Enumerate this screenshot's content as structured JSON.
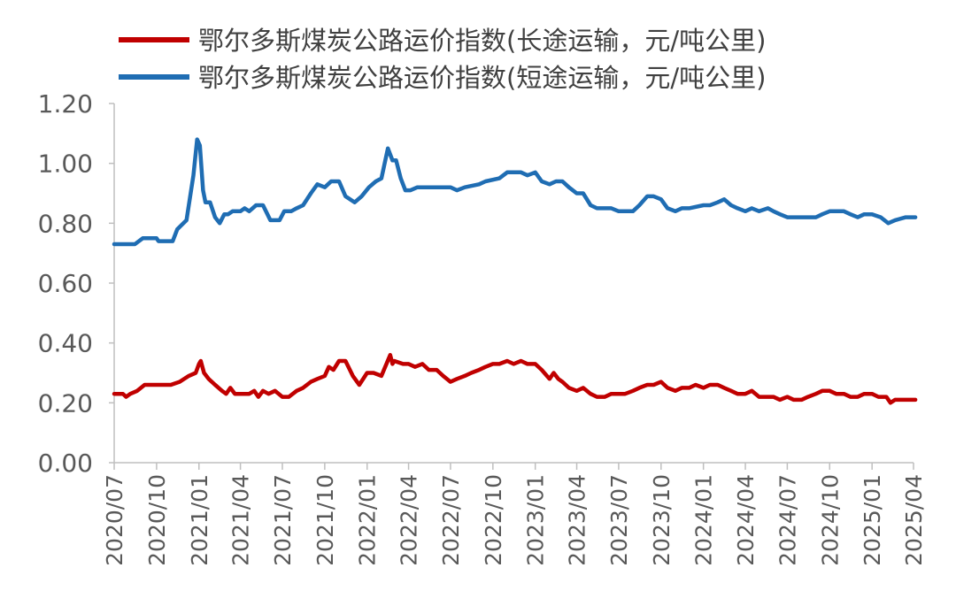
{
  "chart_data": {
    "type": "line",
    "title": "",
    "xlabel": "",
    "ylabel": "",
    "ylim": [
      0,
      1.2
    ],
    "y_ticks": [
      "0.00",
      "0.20",
      "0.40",
      "0.60",
      "0.80",
      "1.00",
      "1.20"
    ],
    "x_range": [
      "2020/07",
      "2025/04"
    ],
    "x_ticks": [
      "2020/07",
      "2020/10",
      "2021/01",
      "2021/04",
      "2021/07",
      "2021/10",
      "2022/01",
      "2022/04",
      "2022/07",
      "2022/10",
      "2023/01",
      "2023/04",
      "2023/07",
      "2023/10",
      "2024/01",
      "2024/04",
      "2024/07",
      "2024/10",
      "2025/01",
      "2025/04"
    ],
    "grid": false,
    "legend_position": "top",
    "series": [
      {
        "name": "鄂尔多斯煤炭公路运价指数(长途运输，元/吨公里)",
        "color": "#c00000",
        "points": [
          [
            "2020/07/01",
            0.23
          ],
          [
            "2020/07/20",
            0.23
          ],
          [
            "2020/07/27",
            0.22
          ],
          [
            "2020/08/05",
            0.23
          ],
          [
            "2020/08/20",
            0.24
          ],
          [
            "2020/09/05",
            0.26
          ],
          [
            "2020/10/01",
            0.26
          ],
          [
            "2020/11/01",
            0.26
          ],
          [
            "2020/11/20",
            0.27
          ],
          [
            "2020/12/10",
            0.29
          ],
          [
            "2020/12/25",
            0.3
          ],
          [
            "2021/01/01",
            0.33
          ],
          [
            "2021/01/05",
            0.34
          ],
          [
            "2021/01/12",
            0.3
          ],
          [
            "2021/01/22",
            0.28
          ],
          [
            "2021/02/05",
            0.26
          ],
          [
            "2021/02/20",
            0.24
          ],
          [
            "2021/03/01",
            0.23
          ],
          [
            "2021/03/10",
            0.25
          ],
          [
            "2021/03/20",
            0.23
          ],
          [
            "2021/04/20",
            0.23
          ],
          [
            "2021/05/01",
            0.24
          ],
          [
            "2021/05/10",
            0.22
          ],
          [
            "2021/05/20",
            0.24
          ],
          [
            "2021/06/01",
            0.23
          ],
          [
            "2021/06/15",
            0.24
          ],
          [
            "2021/07/01",
            0.22
          ],
          [
            "2021/07/15",
            0.22
          ],
          [
            "2021/08/01",
            0.24
          ],
          [
            "2021/08/15",
            0.25
          ],
          [
            "2021/09/01",
            0.27
          ],
          [
            "2021/09/15",
            0.28
          ],
          [
            "2021/10/01",
            0.29
          ],
          [
            "2021/10/10",
            0.32
          ],
          [
            "2021/10/20",
            0.31
          ],
          [
            "2021/11/01",
            0.34
          ],
          [
            "2021/11/15",
            0.34
          ],
          [
            "2021/12/01",
            0.29
          ],
          [
            "2021/12/15",
            0.26
          ],
          [
            "2022/01/01",
            0.3
          ],
          [
            "2022/01/15",
            0.3
          ],
          [
            "2022/02/01",
            0.29
          ],
          [
            "2022/02/20",
            0.36
          ],
          [
            "2022/02/25",
            0.33
          ],
          [
            "2022/03/01",
            0.34
          ],
          [
            "2022/03/20",
            0.33
          ],
          [
            "2022/04/01",
            0.33
          ],
          [
            "2022/04/15",
            0.32
          ],
          [
            "2022/05/01",
            0.33
          ],
          [
            "2022/05/15",
            0.31
          ],
          [
            "2022/06/01",
            0.31
          ],
          [
            "2022/06/15",
            0.29
          ],
          [
            "2022/07/01",
            0.27
          ],
          [
            "2022/07/15",
            0.28
          ],
          [
            "2022/08/01",
            0.29
          ],
          [
            "2022/08/15",
            0.3
          ],
          [
            "2022/09/01",
            0.31
          ],
          [
            "2022/09/15",
            0.32
          ],
          [
            "2022/10/01",
            0.33
          ],
          [
            "2022/10/15",
            0.33
          ],
          [
            "2022/11/01",
            0.34
          ],
          [
            "2022/11/15",
            0.33
          ],
          [
            "2022/12/01",
            0.34
          ],
          [
            "2022/12/15",
            0.33
          ],
          [
            "2023/01/01",
            0.33
          ],
          [
            "2023/01/15",
            0.31
          ],
          [
            "2023/02/01",
            0.28
          ],
          [
            "2023/02/10",
            0.3
          ],
          [
            "2023/02/20",
            0.28
          ],
          [
            "2023/03/01",
            0.27
          ],
          [
            "2023/03/15",
            0.25
          ],
          [
            "2023/04/01",
            0.24
          ],
          [
            "2023/04/15",
            0.25
          ],
          [
            "2023/05/01",
            0.23
          ],
          [
            "2023/05/15",
            0.22
          ],
          [
            "2023/06/01",
            0.22
          ],
          [
            "2023/06/15",
            0.23
          ],
          [
            "2023/07/01",
            0.23
          ],
          [
            "2023/07/15",
            0.23
          ],
          [
            "2023/08/01",
            0.24
          ],
          [
            "2023/08/15",
            0.25
          ],
          [
            "2023/09/01",
            0.26
          ],
          [
            "2023/09/15",
            0.26
          ],
          [
            "2023/10/01",
            0.27
          ],
          [
            "2023/10/15",
            0.25
          ],
          [
            "2023/11/01",
            0.24
          ],
          [
            "2023/11/15",
            0.25
          ],
          [
            "2023/12/01",
            0.25
          ],
          [
            "2023/12/15",
            0.26
          ],
          [
            "2024/01/01",
            0.25
          ],
          [
            "2024/01/15",
            0.26
          ],
          [
            "2024/02/01",
            0.26
          ],
          [
            "2024/02/15",
            0.25
          ],
          [
            "2024/03/01",
            0.24
          ],
          [
            "2024/03/15",
            0.23
          ],
          [
            "2024/04/01",
            0.23
          ],
          [
            "2024/04/15",
            0.24
          ],
          [
            "2024/05/01",
            0.22
          ],
          [
            "2024/05/15",
            0.22
          ],
          [
            "2024/06/01",
            0.22
          ],
          [
            "2024/06/15",
            0.21
          ],
          [
            "2024/07/01",
            0.22
          ],
          [
            "2024/07/15",
            0.21
          ],
          [
            "2024/08/01",
            0.21
          ],
          [
            "2024/08/15",
            0.22
          ],
          [
            "2024/09/01",
            0.23
          ],
          [
            "2024/09/15",
            0.24
          ],
          [
            "2024/10/01",
            0.24
          ],
          [
            "2024/10/15",
            0.23
          ],
          [
            "2024/11/01",
            0.23
          ],
          [
            "2024/11/15",
            0.22
          ],
          [
            "2024/12/01",
            0.22
          ],
          [
            "2024/12/15",
            0.23
          ],
          [
            "2025/01/01",
            0.23
          ],
          [
            "2025/01/15",
            0.22
          ],
          [
            "2025/02/01",
            0.22
          ],
          [
            "2025/02/10",
            0.2
          ],
          [
            "2025/02/20",
            0.21
          ],
          [
            "2025/03/15",
            0.21
          ],
          [
            "2025/04/05",
            0.21
          ]
        ]
      },
      {
        "name": "鄂尔多斯煤炭公路运价指数(短途运输，元/吨公里)",
        "color": "#1f6db3",
        "points": [
          [
            "2020/07/01",
            0.73
          ],
          [
            "2020/08/15",
            0.73
          ],
          [
            "2020/09/01",
            0.75
          ],
          [
            "2020/10/01",
            0.75
          ],
          [
            "2020/10/05",
            0.74
          ],
          [
            "2020/11/05",
            0.74
          ],
          [
            "2020/11/15",
            0.78
          ],
          [
            "2020/12/05",
            0.81
          ],
          [
            "2020/12/20",
            0.96
          ],
          [
            "2020/12/28",
            1.08
          ],
          [
            "2021/01/03",
            1.06
          ],
          [
            "2021/01/10",
            0.91
          ],
          [
            "2021/01/15",
            0.87
          ],
          [
            "2021/01/25",
            0.87
          ],
          [
            "2021/02/05",
            0.82
          ],
          [
            "2021/02/15",
            0.8
          ],
          [
            "2021/02/25",
            0.83
          ],
          [
            "2021/03/05",
            0.83
          ],
          [
            "2021/03/15",
            0.84
          ],
          [
            "2021/04/01",
            0.84
          ],
          [
            "2021/04/10",
            0.85
          ],
          [
            "2021/04/20",
            0.84
          ],
          [
            "2021/05/05",
            0.86
          ],
          [
            "2021/05/20",
            0.86
          ],
          [
            "2021/06/05",
            0.81
          ],
          [
            "2021/06/25",
            0.81
          ],
          [
            "2021/07/05",
            0.84
          ],
          [
            "2021/07/20",
            0.84
          ],
          [
            "2021/08/01",
            0.85
          ],
          [
            "2021/08/15",
            0.86
          ],
          [
            "2021/09/01",
            0.9
          ],
          [
            "2021/09/15",
            0.93
          ],
          [
            "2021/10/01",
            0.92
          ],
          [
            "2021/10/15",
            0.94
          ],
          [
            "2021/11/01",
            0.94
          ],
          [
            "2021/11/15",
            0.89
          ],
          [
            "2021/12/05",
            0.87
          ],
          [
            "2021/12/20",
            0.89
          ],
          [
            "2022/01/05",
            0.92
          ],
          [
            "2022/01/20",
            0.94
          ],
          [
            "2022/02/01",
            0.95
          ],
          [
            "2022/02/15",
            1.05
          ],
          [
            "2022/02/25",
            1.01
          ],
          [
            "2022/03/05",
            1.01
          ],
          [
            "2022/03/15",
            0.95
          ],
          [
            "2022/03/25",
            0.91
          ],
          [
            "2022/04/05",
            0.91
          ],
          [
            "2022/04/20",
            0.92
          ],
          [
            "2022/05/01",
            0.92
          ],
          [
            "2022/07/01",
            0.92
          ],
          [
            "2022/07/15",
            0.91
          ],
          [
            "2022/08/01",
            0.92
          ],
          [
            "2022/09/01",
            0.93
          ],
          [
            "2022/09/15",
            0.94
          ],
          [
            "2022/10/15",
            0.95
          ],
          [
            "2022/11/01",
            0.97
          ],
          [
            "2022/12/01",
            0.97
          ],
          [
            "2022/12/15",
            0.96
          ],
          [
            "2023/01/01",
            0.97
          ],
          [
            "2023/01/15",
            0.94
          ],
          [
            "2023/02/01",
            0.93
          ],
          [
            "2023/02/15",
            0.94
          ],
          [
            "2023/03/01",
            0.94
          ],
          [
            "2023/03/15",
            0.92
          ],
          [
            "2023/04/01",
            0.9
          ],
          [
            "2023/04/15",
            0.9
          ],
          [
            "2023/05/01",
            0.86
          ],
          [
            "2023/05/15",
            0.85
          ],
          [
            "2023/06/01",
            0.85
          ],
          [
            "2023/06/15",
            0.85
          ],
          [
            "2023/07/01",
            0.84
          ],
          [
            "2023/08/01",
            0.84
          ],
          [
            "2023/08/15",
            0.86
          ],
          [
            "2023/09/01",
            0.89
          ],
          [
            "2023/09/15",
            0.89
          ],
          [
            "2023/10/01",
            0.88
          ],
          [
            "2023/10/15",
            0.85
          ],
          [
            "2023/11/01",
            0.84
          ],
          [
            "2023/11/15",
            0.85
          ],
          [
            "2023/12/01",
            0.85
          ],
          [
            "2024/01/01",
            0.86
          ],
          [
            "2024/01/15",
            0.86
          ],
          [
            "2024/02/01",
            0.87
          ],
          [
            "2024/02/15",
            0.88
          ],
          [
            "2024/03/01",
            0.86
          ],
          [
            "2024/03/15",
            0.85
          ],
          [
            "2024/04/01",
            0.84
          ],
          [
            "2024/04/15",
            0.85
          ],
          [
            "2024/05/01",
            0.84
          ],
          [
            "2024/05/20",
            0.85
          ],
          [
            "2024/06/01",
            0.84
          ],
          [
            "2024/06/15",
            0.83
          ],
          [
            "2024/07/01",
            0.82
          ],
          [
            "2024/09/01",
            0.82
          ],
          [
            "2024/09/15",
            0.83
          ],
          [
            "2024/10/01",
            0.84
          ],
          [
            "2024/11/01",
            0.84
          ],
          [
            "2024/11/15",
            0.83
          ],
          [
            "2024/12/01",
            0.82
          ],
          [
            "2024/12/15",
            0.83
          ],
          [
            "2025/01/01",
            0.83
          ],
          [
            "2025/01/20",
            0.82
          ],
          [
            "2025/02/05",
            0.8
          ],
          [
            "2025/02/20",
            0.81
          ],
          [
            "2025/03/15",
            0.82
          ],
          [
            "2025/04/05",
            0.82
          ]
        ]
      }
    ]
  }
}
